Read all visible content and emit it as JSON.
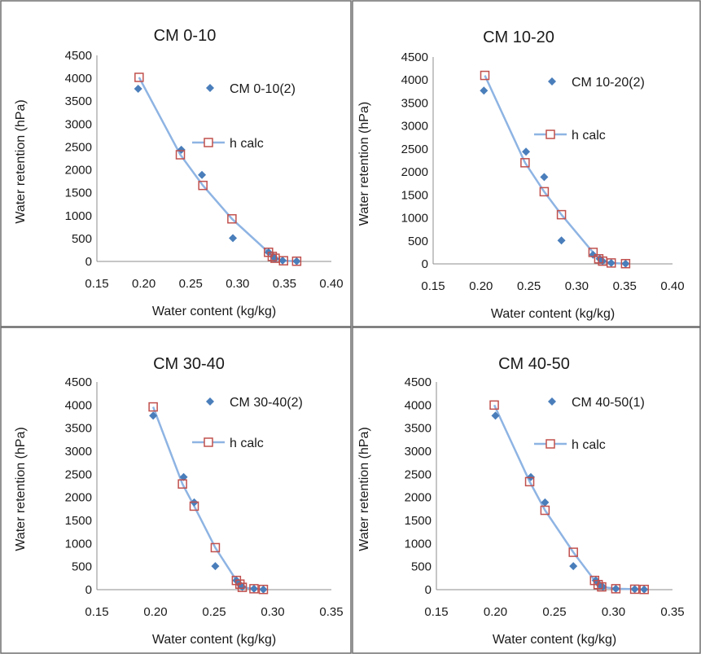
{
  "colors": {
    "observed_marker": "#4a7ebb",
    "calc_line": "#8eb4e3",
    "calc_marker": "#c0504d",
    "frame": "#6e6e6e"
  },
  "chart_data": [
    {
      "type": "scatter",
      "title": "CM 0-10",
      "xlabel": "Water content (kg/kg)",
      "ylabel": "Water retention (hPa)",
      "xlim": [
        0.15,
        0.4
      ],
      "ylim": [
        0,
        4500
      ],
      "xticks": [
        "0.15",
        "0.20",
        "0.25",
        "0.30",
        "0.35",
        "0.40"
      ],
      "yticks": [
        "0",
        "500",
        "1000",
        "1500",
        "2000",
        "2500",
        "3000",
        "3500",
        "4000",
        "4500"
      ],
      "legend_position": "top-right",
      "series": [
        {
          "name": "CM 0-10(2)",
          "marker": "diamond",
          "x": [
            0.194,
            0.24,
            0.262,
            0.295,
            0.333,
            0.338,
            0.34,
            0.348,
            0.363
          ],
          "y": [
            3770,
            2440,
            1890,
            510,
            200,
            110,
            60,
            20,
            5
          ]
        },
        {
          "name": "h calc",
          "marker": "square",
          "line": true,
          "x": [
            0.195,
            0.239,
            0.263,
            0.294,
            0.333,
            0.337,
            0.34,
            0.349,
            0.363
          ],
          "y": [
            4020,
            2330,
            1660,
            930,
            200,
            110,
            70,
            15,
            5
          ]
        }
      ]
    },
    {
      "type": "scatter",
      "title": "CM 10-20",
      "xlabel": "Water content (kg/kg)",
      "ylabel": "Water retention (hPa)",
      "xlim": [
        0.15,
        0.4
      ],
      "ylim": [
        0,
        4500
      ],
      "xticks": [
        "0.15",
        "0.20",
        "0.25",
        "0.30",
        "0.35",
        "0.40"
      ],
      "yticks": [
        "0",
        "500",
        "1000",
        "1500",
        "2000",
        "2500",
        "3000",
        "3500",
        "4000",
        "4500"
      ],
      "legend_position": "top-right",
      "series": [
        {
          "name": "CM 10-20(2)",
          "marker": "diamond",
          "x": [
            0.203,
            0.247,
            0.266,
            0.284,
            0.317,
            0.324,
            0.327,
            0.336,
            0.351
          ],
          "y": [
            3770,
            2440,
            1890,
            510,
            200,
            110,
            60,
            20,
            5
          ]
        },
        {
          "name": "h calc",
          "marker": "square",
          "line": true,
          "x": [
            0.204,
            0.246,
            0.266,
            0.284,
            0.317,
            0.323,
            0.327,
            0.336,
            0.351
          ],
          "y": [
            4100,
            2200,
            1570,
            1070,
            250,
            110,
            60,
            20,
            5
          ]
        }
      ]
    },
    {
      "type": "scatter",
      "title": "CM 30-40",
      "xlabel": "Water content (kg/kg)",
      "ylabel": "Water retention (hPa)",
      "xlim": [
        0.15,
        0.35
      ],
      "ylim": [
        0,
        4500
      ],
      "xticks": [
        "0.15",
        "0.20",
        "0.25",
        "0.30",
        "0.35"
      ],
      "yticks": [
        "0",
        "500",
        "1000",
        "1500",
        "2000",
        "2500",
        "3000",
        "3500",
        "4000",
        "4500"
      ],
      "legend_position": "top-right",
      "series": [
        {
          "name": "CM 30-40(2)",
          "marker": "diamond",
          "x": [
            0.198,
            0.224,
            0.233,
            0.251,
            0.269,
            0.272,
            0.274,
            0.284,
            0.292
          ],
          "y": [
            3770,
            2440,
            1890,
            510,
            200,
            110,
            60,
            20,
            5
          ]
        },
        {
          "name": "h calc",
          "marker": "square",
          "line": true,
          "x": [
            0.198,
            0.223,
            0.233,
            0.251,
            0.269,
            0.272,
            0.274,
            0.284,
            0.292
          ],
          "y": [
            3960,
            2290,
            1810,
            910,
            200,
            120,
            50,
            20,
            5
          ]
        }
      ]
    },
    {
      "type": "scatter",
      "title": "CM 40-50",
      "xlabel": "Water content (kg/kg)",
      "ylabel": "Water retention (hPa)",
      "xlim": [
        0.15,
        0.35
      ],
      "ylim": [
        0,
        4500
      ],
      "xticks": [
        "0.15",
        "0.20",
        "0.25",
        "0.30",
        "0.35"
      ],
      "yticks": [
        "0",
        "500",
        "1000",
        "1500",
        "2000",
        "2500",
        "3000",
        "3500",
        "4000",
        "4500"
      ],
      "legend_position": "top-right",
      "series": [
        {
          "name": "CM 40-50(1)",
          "marker": "diamond",
          "x": [
            0.2,
            0.23,
            0.242,
            0.266,
            0.285,
            0.288,
            0.291,
            0.302,
            0.318,
            0.326
          ],
          "y": [
            3770,
            2440,
            1890,
            510,
            200,
            110,
            60,
            20,
            10,
            5
          ]
        },
        {
          "name": "h calc",
          "marker": "square",
          "line": true,
          "x": [
            0.199,
            0.229,
            0.242,
            0.266,
            0.284,
            0.287,
            0.29,
            0.302,
            0.318,
            0.326
          ],
          "y": [
            4000,
            2340,
            1720,
            810,
            200,
            110,
            60,
            20,
            10,
            5
          ]
        }
      ]
    }
  ]
}
